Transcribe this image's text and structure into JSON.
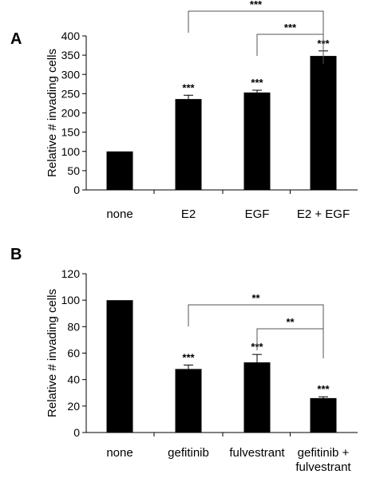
{
  "colors": {
    "bar": "#000000",
    "axis": "#000000",
    "background": "#ffffff"
  },
  "chart_data": [
    {
      "type": "bar",
      "panel_label": "A",
      "ylabel": "Relative # invading cells",
      "ylim": [
        0,
        400
      ],
      "yticks": [
        "0",
        "50",
        "100",
        "150",
        "200",
        "250",
        "300",
        "350",
        "400"
      ],
      "categories": [
        [
          "none"
        ],
        [
          "E2"
        ],
        [
          "EGF"
        ],
        [
          "E2 + EGF"
        ]
      ],
      "values": [
        100,
        236,
        253,
        348
      ],
      "errors": [
        0,
        10,
        6,
        13
      ],
      "bar_labels": [
        "",
        "***",
        "***",
        "***"
      ],
      "comparisons": [
        {
          "from": 1,
          "to": 3,
          "label": "***"
        },
        {
          "from": 2,
          "to": 3,
          "label": "***"
        }
      ],
      "grid": false,
      "legend": "none"
    },
    {
      "type": "bar",
      "panel_label": "B",
      "ylabel": "Relative # invading cells",
      "ylim": [
        0,
        120
      ],
      "yticks": [
        "0",
        "20",
        "40",
        "60",
        "80",
        "100",
        "120"
      ],
      "categories": [
        [
          "none"
        ],
        [
          "gefitinib"
        ],
        [
          "fulvestrant"
        ],
        [
          "gefitinib +",
          "fulvestrant"
        ]
      ],
      "values": [
        100,
        48,
        53,
        26
      ],
      "errors": [
        0,
        3,
        6,
        1
      ],
      "bar_labels": [
        "",
        "***",
        "***",
        "***"
      ],
      "comparisons": [
        {
          "from": 1,
          "to": 3,
          "label": "**"
        },
        {
          "from": 2,
          "to": 3,
          "label": "**"
        }
      ],
      "grid": false,
      "legend": "none"
    }
  ]
}
